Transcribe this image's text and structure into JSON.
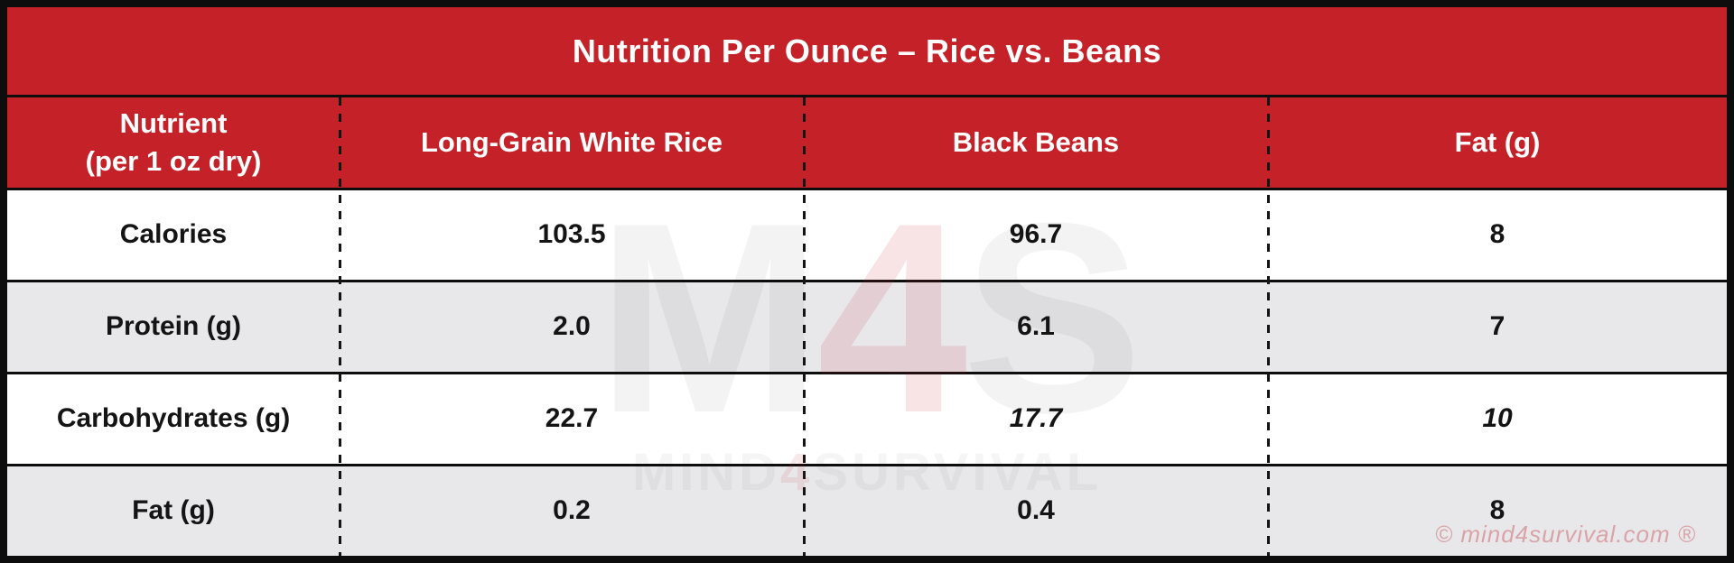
{
  "title": "Nutrition Per Ounce – Rice vs. Beans",
  "header": {
    "nutrient_line1": "Nutrient",
    "nutrient_line2": "(per 1 oz dry)",
    "col2": "Long-Grain White Rice",
    "col3": "Black Beans",
    "col4": "Fat (g)"
  },
  "rows": [
    {
      "label": "Calories",
      "rice": "103.5",
      "beans": "96.7",
      "fat": "8"
    },
    {
      "label": "Protein (g)",
      "rice": "2.0",
      "beans": "6.1",
      "fat": "7"
    },
    {
      "label": "Carbohydrates (g)",
      "rice": "22.7",
      "beans": "17.7",
      "fat": "10"
    },
    {
      "label": "Fat (g)",
      "rice": "0.2",
      "beans": "0.4",
      "fat": "8"
    }
  ],
  "watermark": {
    "logo_m": "M",
    "logo_4": "4",
    "logo_s": "S",
    "subtext_pre": "MIND",
    "subtext_4": "4",
    "subtext_post": "SURVIVAL"
  },
  "copyright": "© mind4survival.com ®",
  "colors": {
    "red": "#C42228",
    "row_alt": "#E8E8EB",
    "line": "#0D0D0D",
    "copyright_text": "#D9A3A7"
  },
  "chart_data": {
    "type": "table",
    "title": "Nutrition Per Ounce – Rice vs. Beans",
    "columns": [
      "Nutrient (per 1 oz dry)",
      "Long-Grain White Rice",
      "Black Beans",
      "Fat (g)"
    ],
    "rows": [
      [
        "Calories",
        103.5,
        96.7,
        8
      ],
      [
        "Protein (g)",
        2.0,
        6.1,
        7
      ],
      [
        "Carbohydrates (g)",
        22.7,
        17.7,
        10
      ],
      [
        "Fat (g)",
        0.2,
        0.4,
        8
      ]
    ],
    "layout": "title band + header row in red, alternating white/gray body rows, dashed column dividers"
  }
}
